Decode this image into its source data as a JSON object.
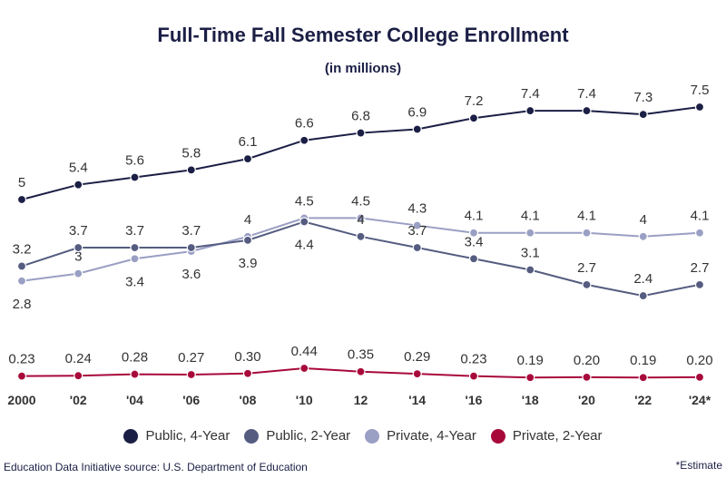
{
  "chart_data": {
    "type": "line",
    "title": "Full-Time Fall Semester College Enrollment",
    "subtitle": "(in millions)",
    "categories": [
      "2000",
      "'02",
      "'04",
      "'06",
      "'08",
      "'10",
      "12",
      "'14",
      "'16",
      "'18",
      "'20",
      "'22",
      "'24*"
    ],
    "ylim": [
      0,
      8
    ],
    "grid": false,
    "legend_placement": "bottom",
    "series": [
      {
        "name": "Public, 4-Year",
        "color": "#1b1f45",
        "values": [
          5,
          5.4,
          5.6,
          5.8,
          6.1,
          6.6,
          6.8,
          6.9,
          7.2,
          7.4,
          7.4,
          7.3,
          7.5
        ],
        "labels": [
          "5",
          "5.4",
          "5.6",
          "5.8",
          "6.1",
          "6.6",
          "6.8",
          "6.9",
          "7.2",
          "7.4",
          "7.4",
          "7.3",
          "7.5"
        ],
        "label_pos": [
          "above",
          "above",
          "above",
          "above",
          "above",
          "above",
          "above",
          "above",
          "above",
          "above",
          "above",
          "above",
          "above"
        ]
      },
      {
        "name": "Public, 2-Year",
        "color": "#555c80",
        "values": [
          3.2,
          3.7,
          3.7,
          3.7,
          3.9,
          4.4,
          4,
          3.7,
          3.4,
          3.1,
          2.7,
          2.4,
          2.7
        ],
        "labels": [
          "3.2",
          "3.7",
          "3.7",
          "3.7",
          "3.9",
          "4.4",
          "4",
          "3.7",
          "3.4",
          "3.1",
          "2.7",
          "2.4",
          "2.7"
        ],
        "label_pos": [
          "above",
          "above",
          "above",
          "above",
          "below",
          "below",
          "above",
          "above",
          "above",
          "above",
          "above",
          "above",
          "above"
        ]
      },
      {
        "name": "Private, 4-Year",
        "color": "#9a9fc4",
        "values": [
          2.8,
          3,
          3.4,
          3.6,
          4,
          4.5,
          4.5,
          4.3,
          4.1,
          4.1,
          4.1,
          4,
          4.1
        ],
        "labels": [
          "2.8",
          "3",
          "3.4",
          "3.6",
          "4",
          "4.5",
          "4.5",
          "4.3",
          "4.1",
          "4.1",
          "4.1",
          "4",
          "4.1"
        ],
        "label_pos": [
          "below",
          "above",
          "below",
          "below",
          "above",
          "above",
          "above",
          "above",
          "above",
          "above",
          "above",
          "above",
          "above"
        ]
      },
      {
        "name": "Private, 2-Year",
        "color": "#a8093b",
        "values": [
          0.23,
          0.24,
          0.28,
          0.27,
          0.3,
          0.44,
          0.35,
          0.29,
          0.23,
          0.19,
          0.2,
          0.19,
          0.2
        ],
        "labels": [
          "0.23",
          "0.24",
          "0.28",
          "0.27",
          "0.30",
          "0.44",
          "0.35",
          "0.29",
          "0.23",
          "0.19",
          "0.20",
          "0.19",
          "0.20"
        ],
        "label_pos": [
          "above",
          "above",
          "above",
          "above",
          "above",
          "above",
          "above",
          "above",
          "above",
          "above",
          "above",
          "above",
          "above"
        ]
      }
    ]
  },
  "footer": {
    "source": "Education Data Initiative source: U.S. Department of Education",
    "note": "*Estimate"
  }
}
